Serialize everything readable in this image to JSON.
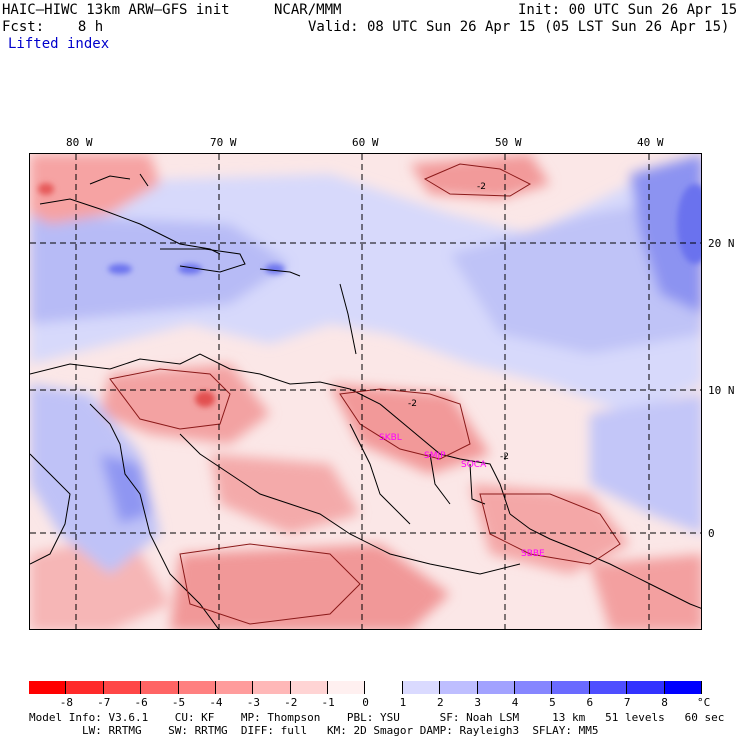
{
  "header": {
    "model": "HAIC–HIWC 13km ARW–GFS init",
    "org": "NCAR/MMM",
    "init": "Init: 00 UTC Sun 26 Apr 15",
    "fcst": "Fcst:    8 h",
    "valid": "Valid: 08 UTC Sun 26 Apr 15 (05 LST Sun 26 Apr 15)",
    "field": "Lifted index"
  },
  "map": {
    "longitude_labels": [
      "80 W",
      "70 W",
      "60 W",
      "50 W",
      "40 W"
    ],
    "latitude_labels": [
      "20 N",
      "10 N",
      "0"
    ],
    "stations": [
      "SKBL",
      "SMJP",
      "SOCA",
      "SBBE"
    ],
    "contour_labels": [
      "-2",
      "-2",
      "-2"
    ]
  },
  "colorbar": {
    "labels": [
      "-8",
      "-7",
      "-6",
      "-5",
      "-4",
      "-3",
      "-2",
      "-1",
      "0",
      "1",
      "2",
      "3",
      "4",
      "5",
      "6",
      "7",
      "8"
    ],
    "unit": "°C",
    "colors": [
      "#ff0000",
      "#ff2a2a",
      "#ff4747",
      "#ff6464",
      "#ff8080",
      "#ff9c9c",
      "#ffb8b8",
      "#ffd4d4",
      "#fff0f0",
      "#ffffff",
      "#dadaff",
      "#bebeff",
      "#a2a2ff",
      "#8686ff",
      "#6a6aff",
      "#4e4eff",
      "#3232ff",
      "#0000ff"
    ]
  },
  "footer": {
    "line1": "Model Info: V3.6.1    CU: KF    MP: Thompson    PBL: YSU      SF: Noah LSM     13 km   51 levels   60 sec",
    "line2": "        LW: RRTMG    SW: RRTMG  DIFF: full   KM: 2D Smagor DAMP: Rayleigh3  SFLAY: MM5"
  }
}
